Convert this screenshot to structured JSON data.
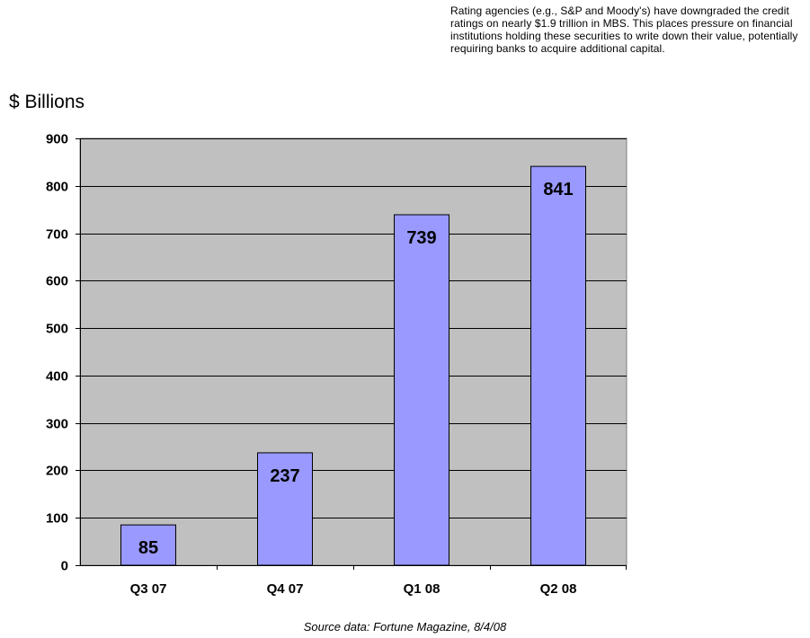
{
  "annotation": "Rating agencies (e.g., S&P and Moody's) have downgraded the credit ratings on nearly $1.9 trillion in MBS.  This places pressure on financial institutions holding these securities to write down their value, potentially requiring banks to acquire additional capital.",
  "source": "Source data:  Fortune Magazine, 8/4/08",
  "colors": {
    "plot_background": "#c0c0c0",
    "bar_fill": "#9999ff",
    "bar_stroke": "#000000",
    "gridline": "#000000"
  },
  "chart_data": {
    "type": "bar",
    "title": "",
    "xlabel": "",
    "ylabel": "$ Billions",
    "categories": [
      "Q3 07",
      "Q4 07",
      "Q1 08",
      "Q2 08"
    ],
    "values": [
      85,
      237,
      739,
      841
    ],
    "data_labels": [
      "85",
      "237",
      "739",
      "841"
    ],
    "ylim": [
      0,
      900
    ],
    "yticks": [
      0,
      100,
      200,
      300,
      400,
      500,
      600,
      700,
      800,
      900
    ],
    "ytick_labels": [
      "0",
      "100",
      "200",
      "300",
      "400",
      "500",
      "600",
      "700",
      "800",
      "900"
    ],
    "grid": true,
    "legend": "none"
  }
}
